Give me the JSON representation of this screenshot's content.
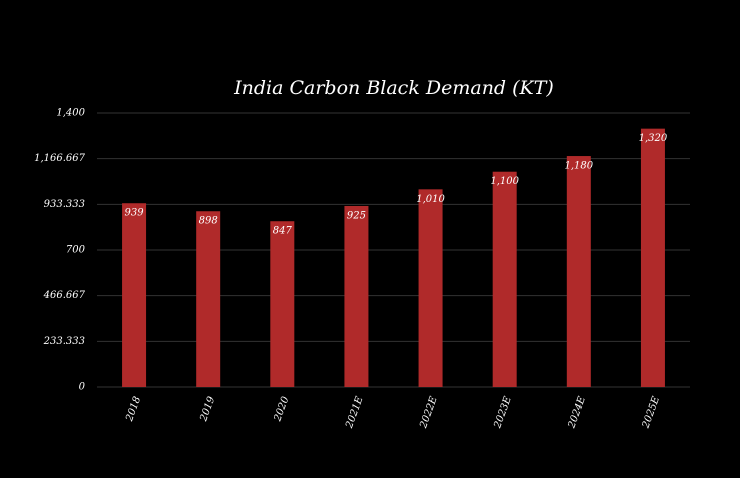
{
  "chart_data": {
    "type": "bar",
    "title": "India Carbon Black Demand (KT)",
    "categories": [
      "2018",
      "2019",
      "2020",
      "2021E",
      "2022E",
      "2023E",
      "2024E",
      "2025E"
    ],
    "values": [
      939,
      898,
      847,
      925,
      1010,
      1100,
      1180,
      1320
    ],
    "value_labels": [
      "939",
      "898",
      "847",
      "925",
      "1,010",
      "1,100",
      "1,180",
      "1,320"
    ],
    "color": "#b02a2a",
    "ylim": [
      0,
      1400
    ],
    "yticks": [
      0,
      233.333,
      466.667,
      700,
      933.333,
      {
        "value": 1166.667,
        "label": "1,166.667"
      },
      {
        "value": 1400,
        "label": "1,400"
      }
    ],
    "grid": true
  }
}
